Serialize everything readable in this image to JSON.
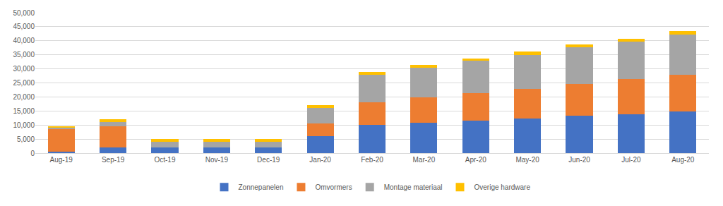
{
  "chart_data": {
    "type": "bar",
    "stacked": true,
    "grid": true,
    "legend": "bottom",
    "categories": [
      "Aug-19",
      "Sep-19",
      "Oct-19",
      "Nov-19",
      "Dec-19",
      "Jan-20",
      "Feb-20",
      "Mar-20",
      "Apr-20",
      "May-20",
      "Jun-20",
      "Jul-20",
      "Aug-20"
    ],
    "series": [
      {
        "name": "Zonnepanelen",
        "color": "#4472c4",
        "values": [
          500,
          2000,
          2000,
          2000,
          2000,
          6000,
          10000,
          10700,
          11600,
          12300,
          13200,
          13900,
          14800
        ]
      },
      {
        "name": "Omvormers",
        "color": "#ed7d31",
        "values": [
          8200,
          7500,
          0,
          0,
          0,
          4500,
          8200,
          9200,
          9700,
          10500,
          11300,
          12500,
          13200
        ]
      },
      {
        "name": "Montage materiaal",
        "color": "#a5a5a5",
        "values": [
          400,
          1500,
          2000,
          2000,
          2000,
          5500,
          9600,
          10400,
          11600,
          12200,
          13200,
          13400,
          14300
        ]
      },
      {
        "name": "Overige hardware",
        "color": "#ffc000",
        "values": [
          500,
          1000,
          1000,
          1000,
          1000,
          1000,
          1200,
          1000,
          800,
          1100,
          1000,
          1000,
          1100
        ]
      }
    ],
    "ylim": [
      0,
      50000
    ],
    "yticks": [
      0,
      {
        "value": 5000,
        "label": "5,000"
      },
      {
        "value": 10000,
        "label": "10,000"
      },
      {
        "value": 15000,
        "label": "15,000"
      },
      {
        "value": 20000,
        "label": "20,000"
      },
      {
        "value": 25000,
        "label": "25,000"
      },
      {
        "value": 30000,
        "label": "30,000"
      },
      {
        "value": 35000,
        "label": "35,000"
      },
      {
        "value": 40000,
        "label": "40,000"
      },
      {
        "value": 45000,
        "label": "45,000"
      },
      {
        "value": 50000,
        "label": "50,000"
      }
    ]
  }
}
